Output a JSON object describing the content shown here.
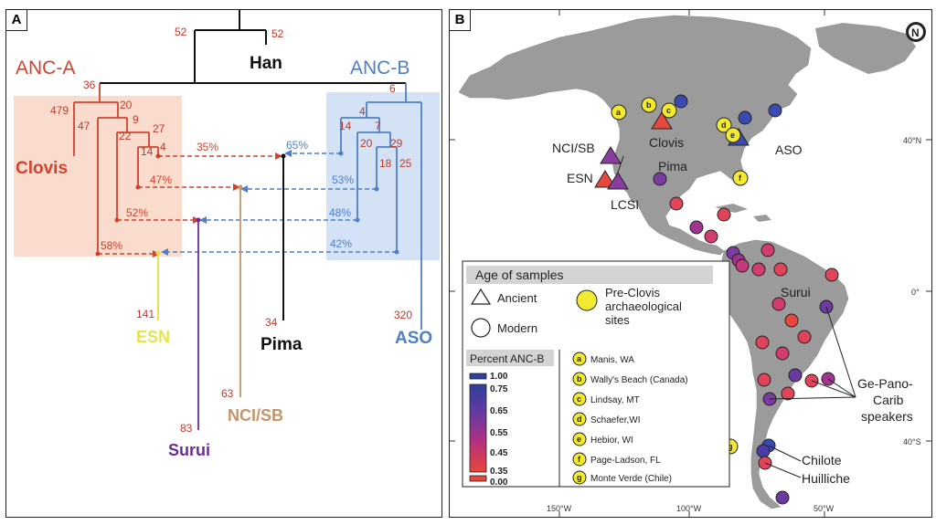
{
  "panel_a": {
    "label": "A",
    "anc_a": "ANC-A",
    "anc_b": "ANC-B",
    "han": "Han",
    "clovis": "Clovis",
    "esn": "ESN",
    "pima": "Pima",
    "aso": "ASO",
    "nci_sb": "NCI/SB",
    "surui": "Surui",
    "branch_lengths": {
      "top_left": "52",
      "top_right": "52",
      "anc_a_root": "36",
      "anc_b_root": "6",
      "clovis": "479",
      "n20": "20",
      "n47": "47",
      "n9": "9",
      "n22": "22",
      "n27": "27",
      "n14a": "14",
      "n4a": "4",
      "b4": "4",
      "b14": "14",
      "b7": "7",
      "b20": "20",
      "b29": "29",
      "b18": "18",
      "b25": "25",
      "esn": "141",
      "pima": "34",
      "aso": "320",
      "nci": "63",
      "surui": "83"
    },
    "admixture": {
      "p35": "35%",
      "p65": "65%",
      "p47": "47%",
      "p53": "53%",
      "p52": "52%",
      "p48": "48%",
      "p58": "58%",
      "p42": "42%"
    },
    "colors": {
      "anc_a": "#d0432e",
      "anc_b": "#4f7fc6",
      "han": "#111111",
      "esn": "#e4e452",
      "nci": "#c2956a",
      "surui": "#6c2a96",
      "bg_a": "#f9dccd",
      "bg_b": "#d3e2f5"
    }
  },
  "panel_b": {
    "label": "B",
    "north": "N",
    "lat_labels": [
      "40°N",
      "0°",
      "40°S"
    ],
    "lon_labels": [
      "150°W",
      "100°W",
      "50°W"
    ],
    "site_letters": [
      "a",
      "b",
      "c",
      "d",
      "e",
      "f",
      "g"
    ],
    "place_labels": {
      "clovis": "Clovis",
      "nci_sb": "NCI/SB",
      "esn": "ESN",
      "pima": "Pima",
      "lcsi": "LCSI",
      "aso": "ASO",
      "surui": "Surui",
      "ge_pano_carib": "Ge-Pano-\nCarib\nspeakers",
      "chilote": "Chilote",
      "huilliche": "Huilliche"
    },
    "legend": {
      "title": "Age of samples",
      "ancient": "Ancient",
      "modern": "Modern",
      "preclovis": "Pre-Clovis\narchaeological\nsites",
      "percent_title": "Percent ANC-B",
      "scale_ticks": [
        "1.00",
        "0.75",
        "0.65",
        "0.55",
        "0.45",
        "0.35",
        "0.00"
      ],
      "sites": [
        {
          "letter": "a",
          "name": "Manis, WA"
        },
        {
          "letter": "b",
          "name": "Wally's Beach (Canada)"
        },
        {
          "letter": "c",
          "name": "Lindsay, MT"
        },
        {
          "letter": "d",
          "name": "Schaefer,WI"
        },
        {
          "letter": "e",
          "name": "Hebior, WI"
        },
        {
          "letter": "f",
          "name": "Page-Ladson, FL"
        },
        {
          "letter": "g",
          "name": "Monte Verde (Chile)"
        }
      ]
    },
    "colors": {
      "land": "#9b9b9b",
      "site_yellow": "#f2ea30",
      "legend_header": "#d4d4d4"
    }
  }
}
